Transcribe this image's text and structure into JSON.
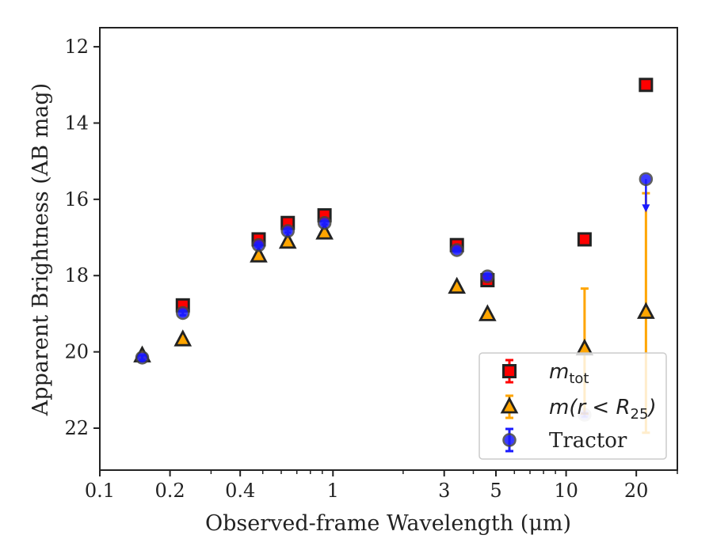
{
  "chart_data": {
    "type": "scatter",
    "xlabel": "Observed-frame Wavelength (μm)",
    "ylabel": "Apparent Brightness (AB mag)",
    "xscale": "log",
    "xlim": [
      0.1,
      30
    ],
    "ylim": [
      23.1,
      11.5
    ],
    "y_inverted": true,
    "x_ticks": [
      0.1,
      0.2,
      0.4,
      1,
      3,
      5,
      10,
      20
    ],
    "x_tick_labels": [
      "0.1",
      "0.2",
      "0.4",
      "1",
      "3",
      "5",
      "10",
      "20"
    ],
    "y_ticks": [
      12,
      14,
      16,
      18,
      20,
      22
    ],
    "y_tick_labels": [
      "12",
      "14",
      "16",
      "18",
      "20",
      "22"
    ],
    "legend": {
      "placement": "lower-right",
      "entries": [
        {
          "key": "mtot",
          "main": "m",
          "sub": "tot",
          "suffix": ""
        },
        {
          "key": "mr25",
          "main": "m(r < R",
          "sub": "25",
          "suffix": ")"
        },
        {
          "key": "tractor",
          "main": "Tractor",
          "sub": "",
          "suffix": ""
        }
      ]
    },
    "series": [
      {
        "key": "mtot",
        "marker": "square",
        "color": "#ff0000",
        "edge_color": "#222222",
        "points": [
          {
            "x": 0.227,
            "y": 18.78,
            "err": 0.1
          },
          {
            "x": 0.48,
            "y": 17.05,
            "err": 0.05
          },
          {
            "x": 0.64,
            "y": 16.62,
            "err": 0.05
          },
          {
            "x": 0.92,
            "y": 16.42,
            "err": 0.05
          },
          {
            "x": 3.4,
            "y": 17.2,
            "err": 0.05
          },
          {
            "x": 4.6,
            "y": 18.12,
            "err": 0.08
          },
          {
            "x": 12.0,
            "y": 17.05,
            "err": 0.05
          },
          {
            "x": 22.0,
            "y": 13.0,
            "err": 0.05
          }
        ]
      },
      {
        "key": "mr25",
        "marker": "triangle",
        "color": "#ffa500",
        "edge_color": "#222222",
        "points": [
          {
            "x": 0.152,
            "y": 20.1,
            "err": 0.05
          },
          {
            "x": 0.227,
            "y": 19.68,
            "err": 0.05
          },
          {
            "x": 0.48,
            "y": 17.48,
            "err": 0.05
          },
          {
            "x": 0.64,
            "y": 17.12,
            "err": 0.05
          },
          {
            "x": 0.92,
            "y": 16.88,
            "err": 0.05
          },
          {
            "x": 3.4,
            "y": 18.3,
            "err": 0.05
          },
          {
            "x": 4.6,
            "y": 19.02,
            "err": 0.05
          },
          {
            "x": 12.0,
            "y": 19.92,
            "err_lo": 1.58,
            "err_hi": 1.7
          },
          {
            "x": 22.0,
            "y": 18.96,
            "err_lo": 3.12,
            "err_hi": 3.16
          }
        ]
      },
      {
        "key": "tractor",
        "marker": "circle",
        "color": "#1a1aff",
        "edge_color": "#444444",
        "points": [
          {
            "x": 0.152,
            "y": 20.15,
            "err": 0.06
          },
          {
            "x": 0.227,
            "y": 18.98,
            "err": 0.06
          },
          {
            "x": 0.48,
            "y": 17.2,
            "err": 0.04
          },
          {
            "x": 0.64,
            "y": 16.83,
            "err": 0.04
          },
          {
            "x": 0.92,
            "y": 16.62,
            "err": 0.04
          },
          {
            "x": 3.4,
            "y": 17.33,
            "err": 0.04
          },
          {
            "x": 4.6,
            "y": 18.02,
            "err": 0.05
          },
          {
            "x": 12.0,
            "y": 21.65,
            "err": 0.05,
            "faded": true
          },
          {
            "x": 22.0,
            "y": 15.47,
            "limit_to": 16.3
          }
        ]
      }
    ]
  }
}
